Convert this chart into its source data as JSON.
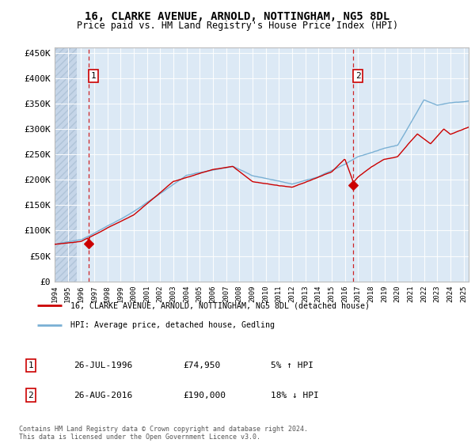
{
  "title": "16, CLARKE AVENUE, ARNOLD, NOTTINGHAM, NG5 8DL",
  "subtitle": "Price paid vs. HM Land Registry's House Price Index (HPI)",
  "ylabel_ticks": [
    "£0",
    "£50K",
    "£100K",
    "£150K",
    "£200K",
    "£250K",
    "£300K",
    "£350K",
    "£400K",
    "£450K"
  ],
  "ytick_values": [
    0,
    50000,
    100000,
    150000,
    200000,
    250000,
    300000,
    350000,
    400000,
    450000
  ],
  "ylim": [
    0,
    460000
  ],
  "xlim_start": 1994.0,
  "xlim_end": 2025.4,
  "bg_color": "#dce9f5",
  "hatch_color": "#c5d5e8",
  "grid_color": "#ffffff",
  "red_line_color": "#cc0000",
  "blue_line_color": "#7ab0d4",
  "point1_x": 1996.57,
  "point1_y": 74950,
  "point2_x": 2016.65,
  "point2_y": 190000,
  "annotation1_label": "1",
  "annotation2_label": "2",
  "legend_line1": "16, CLARKE AVENUE, ARNOLD, NOTTINGHAM, NG5 8DL (detached house)",
  "legend_line2": "HPI: Average price, detached house, Gedling",
  "table_row1": [
    "1",
    "26-JUL-1996",
    "£74,950",
    "5% ↑ HPI"
  ],
  "table_row2": [
    "2",
    "26-AUG-2016",
    "£190,000",
    "18% ↓ HPI"
  ],
  "footer": "Contains HM Land Registry data © Crown copyright and database right 2024.\nThis data is licensed under the Open Government Licence v3.0.",
  "dashed_vline1_x": 1996.57,
  "dashed_vline2_x": 2016.65,
  "title_fontsize": 10,
  "subtitle_fontsize": 8.5
}
